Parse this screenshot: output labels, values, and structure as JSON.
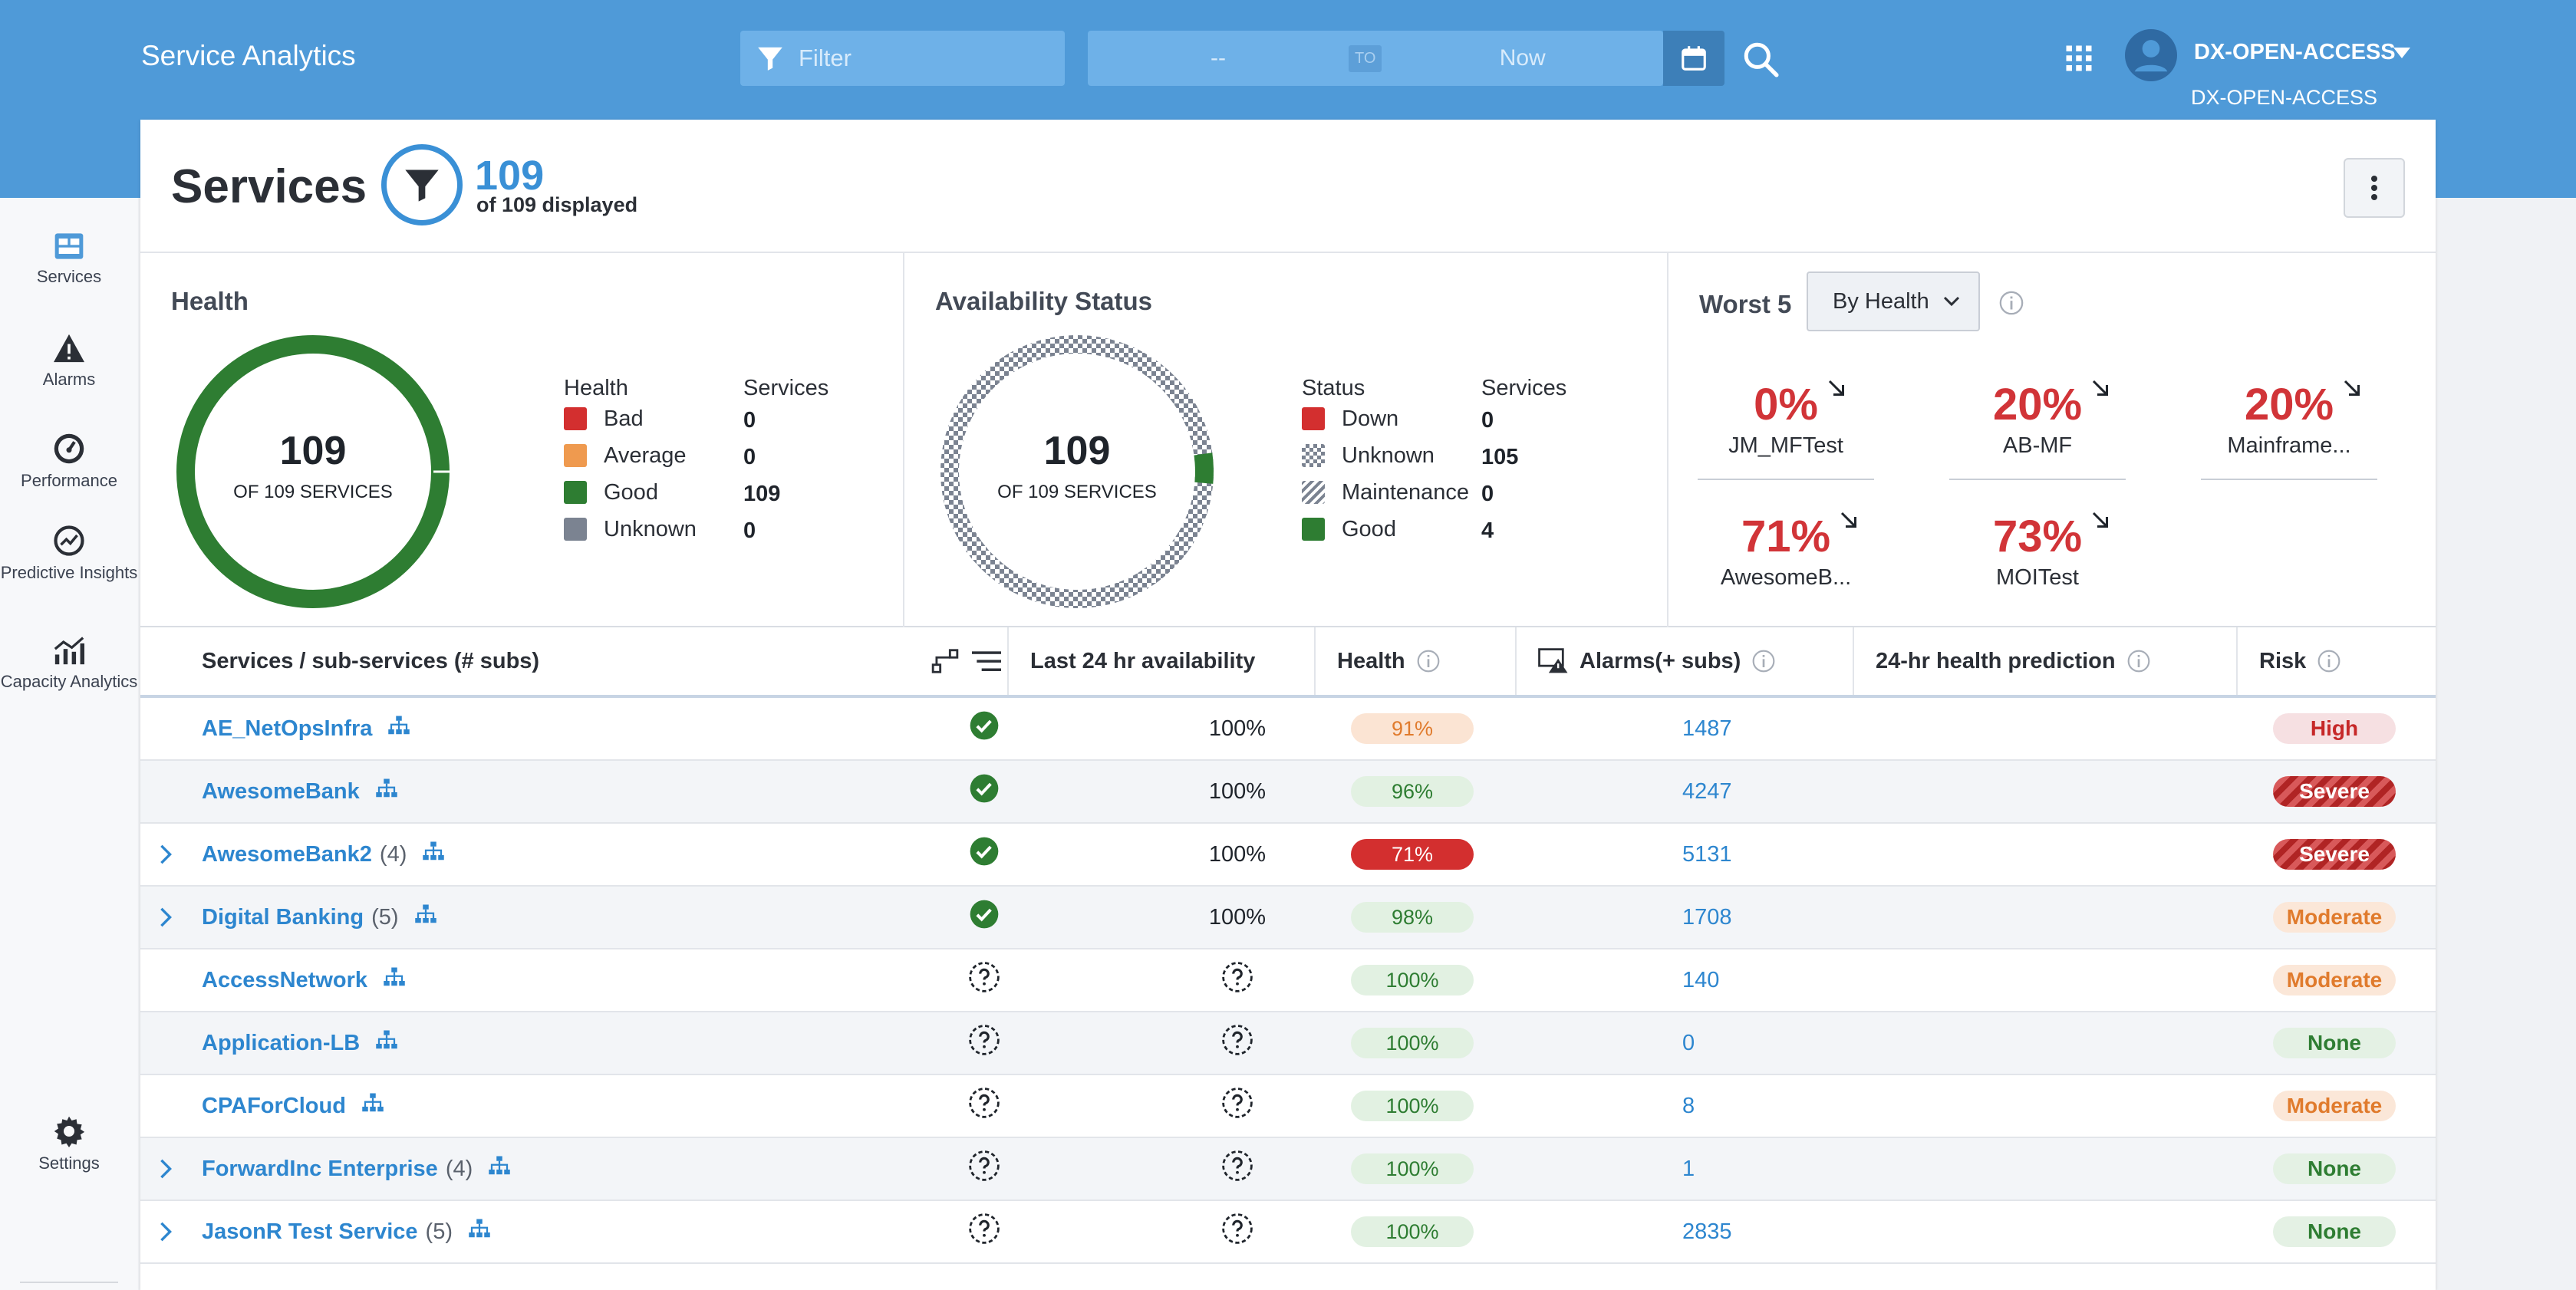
{
  "app": {
    "title": "Service Analytics"
  },
  "topbar": {
    "filter_placeholder": "Filter",
    "date_from": "--",
    "date_to_label": "TO",
    "date_until": "Now",
    "user_name": "DX-OPEN-ACCESS",
    "user_tenant": "DX-OPEN-ACCESS"
  },
  "sidebar": {
    "items": [
      {
        "label": "Services",
        "icon": "services-icon"
      },
      {
        "label": "Alarms",
        "icon": "alarm-icon"
      },
      {
        "label": "Performance",
        "icon": "gauge-icon"
      },
      {
        "label": "Predictive Insights",
        "icon": "predictive-icon"
      },
      {
        "label": "Capacity Analytics",
        "icon": "chart-icon"
      }
    ],
    "settings_label": "Settings"
  },
  "header": {
    "title": "Services",
    "count": "109",
    "count_sub": "of 109 displayed"
  },
  "health_card": {
    "title": "Health",
    "total": "109",
    "total_label": "OF 109 SERVICES",
    "col_health": "Health",
    "col_services": "Services",
    "rows": [
      {
        "label": "Bad",
        "value": "0",
        "color": "#d32f2f"
      },
      {
        "label": "Average",
        "value": "0",
        "color": "#ef9a4f"
      },
      {
        "label": "Good",
        "value": "109",
        "color": "#2e7d32"
      },
      {
        "label": "Unknown",
        "value": "0",
        "color": "#7b8391"
      }
    ]
  },
  "availability_card": {
    "title": "Availability Status",
    "total": "109",
    "total_label": "OF 109 SERVICES",
    "col_status": "Status",
    "col_services": "Services",
    "rows": [
      {
        "label": "Down",
        "value": "0",
        "color": "#d32f2f"
      },
      {
        "label": "Unknown",
        "value": "105",
        "color": "checker"
      },
      {
        "label": "Maintenance",
        "value": "0",
        "color": "hatch"
      },
      {
        "label": "Good",
        "value": "4",
        "color": "#2e7d32"
      }
    ]
  },
  "worst5": {
    "title": "Worst 5",
    "dropdown": "By Health",
    "items": [
      {
        "pct": "0%",
        "name": "JM_MFTest"
      },
      {
        "pct": "20%",
        "name": "AB-MF"
      },
      {
        "pct": "20%",
        "name": "Mainframe..."
      },
      {
        "pct": "71%",
        "name": "AwesomeB..."
      },
      {
        "pct": "73%",
        "name": "MOITest"
      }
    ]
  },
  "table": {
    "headers": {
      "service": "Services / sub-services (# subs)",
      "availability": "Last 24 hr availability",
      "health": "Health",
      "alarms": "Alarms(+ subs)",
      "prediction": "24-hr health prediction",
      "risk": "Risk"
    },
    "rows": [
      {
        "name": "AE_NetOpsInfra",
        "subs": "",
        "expandable": false,
        "status": "ok",
        "availability": "100%",
        "health": "91%",
        "health_level": "avg",
        "alarms": "1487",
        "risk": "High",
        "risk_level": "high"
      },
      {
        "name": "AwesomeBank",
        "subs": "",
        "expandable": false,
        "status": "ok",
        "availability": "100%",
        "health": "96%",
        "health_level": "good",
        "alarms": "4247",
        "risk": "Severe",
        "risk_level": "severe"
      },
      {
        "name": "AwesomeBank2",
        "subs": "(4)",
        "expandable": true,
        "status": "ok",
        "availability": "100%",
        "health": "71%",
        "health_level": "bad",
        "alarms": "5131",
        "risk": "Severe",
        "risk_level": "severe"
      },
      {
        "name": "Digital Banking",
        "subs": "(5)",
        "expandable": true,
        "status": "ok",
        "availability": "100%",
        "health": "98%",
        "health_level": "good",
        "alarms": "1708",
        "risk": "Moderate",
        "risk_level": "moderate"
      },
      {
        "name": "AccessNetwork",
        "subs": "",
        "expandable": false,
        "status": "unknown",
        "availability": "",
        "health": "100%",
        "health_level": "good",
        "alarms": "140",
        "risk": "Moderate",
        "risk_level": "moderate"
      },
      {
        "name": "Application-LB",
        "subs": "",
        "expandable": false,
        "status": "unknown",
        "availability": "",
        "health": "100%",
        "health_level": "good",
        "alarms": "0",
        "risk": "None",
        "risk_level": "none"
      },
      {
        "name": "CPAForCloud",
        "subs": "",
        "expandable": false,
        "status": "unknown",
        "availability": "",
        "health": "100%",
        "health_level": "good",
        "alarms": "8",
        "risk": "Moderate",
        "risk_level": "moderate"
      },
      {
        "name": "ForwardInc Enterprise",
        "subs": "(4)",
        "expandable": true,
        "status": "unknown",
        "availability": "",
        "health": "100%",
        "health_level": "good",
        "alarms": "1",
        "risk": "None",
        "risk_level": "none"
      },
      {
        "name": "JasonR Test Service",
        "subs": "(5)",
        "expandable": true,
        "status": "unknown",
        "availability": "",
        "health": "100%",
        "health_level": "good",
        "alarms": "2835",
        "risk": "None",
        "risk_level": "none"
      }
    ]
  }
}
